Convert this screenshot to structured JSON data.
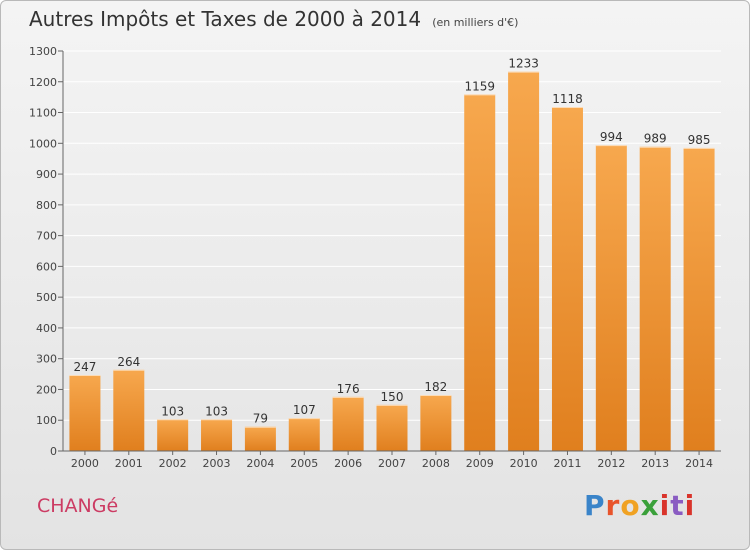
{
  "header": {
    "title": "Autres Impôts et Taxes de 2000 à 2014",
    "subtitle": "(en milliers d'€)"
  },
  "footer": {
    "commune": "CHANGé",
    "logo": "Proxiti"
  },
  "colors": {
    "bar_light": "#f7a84e",
    "bar_dark": "#e07f1e",
    "axis": "#666666",
    "grid": "#ffffff",
    "commune": "#cc3b63"
  },
  "chart_data": {
    "type": "bar",
    "title": "Autres Impôts et Taxes de 2000 à 2014",
    "subtitle": "(en milliers d'€)",
    "xlabel": "",
    "ylabel": "",
    "categories": [
      "2000",
      "2001",
      "2002",
      "2003",
      "2004",
      "2005",
      "2006",
      "2007",
      "2008",
      "2009",
      "2010",
      "2011",
      "2012",
      "2013",
      "2014"
    ],
    "values": [
      247,
      264,
      103,
      103,
      79,
      107,
      176,
      150,
      182,
      1159,
      1233,
      1118,
      994,
      989,
      985
    ],
    "ylim": [
      0,
      1300
    ],
    "yticks": [
      0,
      100,
      200,
      300,
      400,
      500,
      600,
      700,
      800,
      900,
      1000,
      1100,
      1200,
      1300
    ],
    "grid": true,
    "legend": "none"
  }
}
